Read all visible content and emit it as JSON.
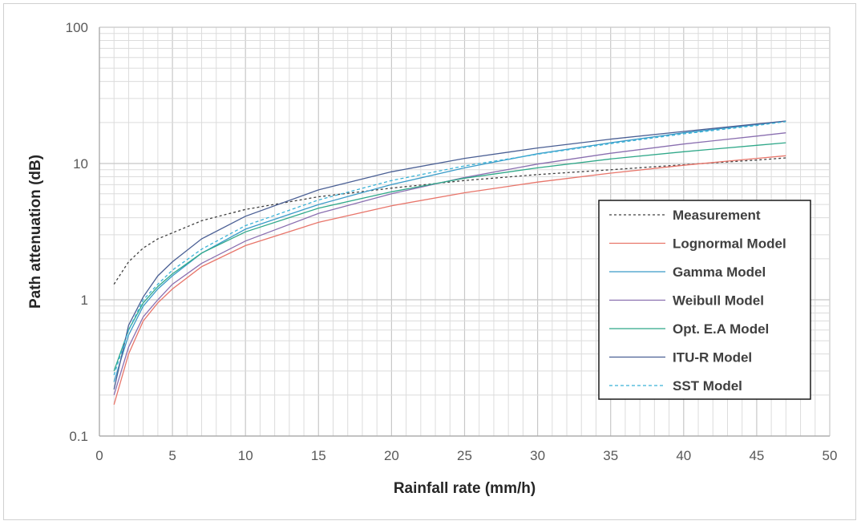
{
  "chart_data": {
    "type": "line",
    "title": "",
    "xlabel": "Rainfall rate (mm/h)",
    "ylabel": "Path attenuation (dB)",
    "xlim": [
      0,
      50
    ],
    "ylim": [
      0.1,
      100
    ],
    "y_scale": "log",
    "grid": true,
    "x_ticks": [
      "0",
      "5",
      "10",
      "15",
      "20",
      "25",
      "30",
      "35",
      "40",
      "45",
      "50"
    ],
    "y_ticks": [
      "0.1",
      "1",
      "10",
      "100"
    ],
    "legend_position": "right",
    "x": [
      1,
      2,
      3,
      4,
      5,
      7,
      10,
      15,
      20,
      25,
      30,
      35,
      40,
      45,
      47
    ],
    "series": [
      {
        "name": "Measurement",
        "color": "#404040",
        "dash": "3,3",
        "values": [
          1.3,
          1.9,
          2.4,
          2.8,
          3.1,
          3.8,
          4.6,
          5.7,
          6.6,
          7.5,
          8.3,
          9.0,
          9.8,
          10.6,
          11.0
        ]
      },
      {
        "name": "Lognormal Model",
        "color": "#e8756a",
        "dash": "",
        "values": [
          0.17,
          0.4,
          0.7,
          0.95,
          1.2,
          1.75,
          2.5,
          3.7,
          4.9,
          6.1,
          7.3,
          8.5,
          9.7,
          10.9,
          11.4
        ]
      },
      {
        "name": "Gamma Model",
        "color": "#3a9bc8",
        "dash": "",
        "values": [
          0.25,
          0.55,
          0.9,
          1.2,
          1.5,
          2.2,
          3.3,
          5.0,
          7.0,
          9.3,
          11.8,
          14.2,
          16.8,
          19.3,
          20.5
        ]
      },
      {
        "name": "Weibull Model",
        "color": "#8a6fb0",
        "dash": "",
        "values": [
          0.2,
          0.45,
          0.75,
          1.0,
          1.3,
          1.85,
          2.7,
          4.3,
          6.0,
          7.9,
          9.9,
          11.9,
          13.9,
          15.9,
          16.8
        ]
      },
      {
        "name": "Opt. E.A Model",
        "color": "#2fa889",
        "dash": "",
        "values": [
          0.3,
          0.6,
          0.95,
          1.25,
          1.55,
          2.2,
          3.15,
          4.7,
          6.2,
          7.8,
          9.3,
          10.8,
          12.2,
          13.6,
          14.2
        ]
      },
      {
        "name": "ITU-R Model",
        "color": "#4a5f94",
        "dash": "",
        "values": [
          0.22,
          0.65,
          1.05,
          1.5,
          1.9,
          2.8,
          4.1,
          6.4,
          8.7,
          10.9,
          13.0,
          15.1,
          17.2,
          19.5,
          20.5
        ]
      },
      {
        "name": "SST Model",
        "color": "#3ab2d6",
        "dash": "4,3",
        "values": [
          0.28,
          0.6,
          1.0,
          1.3,
          1.65,
          2.35,
          3.5,
          5.4,
          7.5,
          9.6,
          11.7,
          14.0,
          16.5,
          19.0,
          20.3
        ]
      }
    ]
  }
}
